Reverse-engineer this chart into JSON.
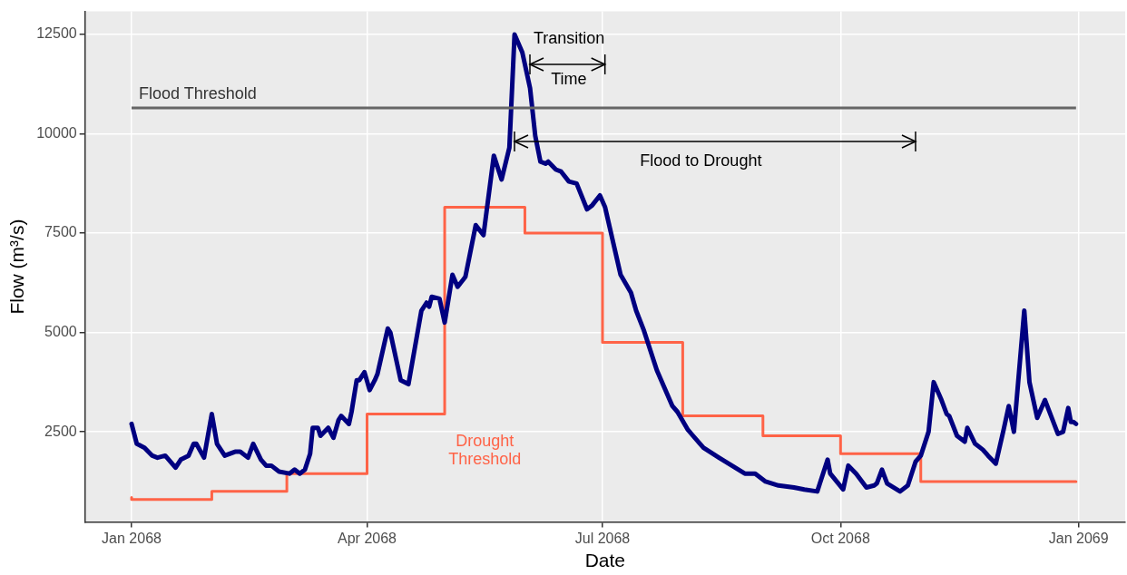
{
  "chart_data": {
    "type": "line",
    "xlabel": "Date",
    "ylabel": "Flow (m³/s)",
    "xlim": [
      "2067-12-14",
      "2069-01-19"
    ],
    "xticks": [
      {
        "value": "2068-01-01",
        "label": "Jan 2068"
      },
      {
        "value": "2068-04-01",
        "label": "Apr 2068"
      },
      {
        "value": "2068-07-01",
        "label": "Jul 2068"
      },
      {
        "value": "2068-10-01",
        "label": "Oct 2068"
      },
      {
        "value": "2069-01-01",
        "label": "Jan 2069"
      }
    ],
    "ylim": [
      230,
      13080
    ],
    "yticks": [
      2500,
      5000,
      7500,
      10000,
      12500
    ],
    "grid": true,
    "legend": false,
    "marker": "none",
    "line_style": "solid",
    "series": [
      {
        "type": "line",
        "color": "#000080",
        "x": [
          "2068-01-01",
          "2068-01-03",
          "2068-01-06",
          "2068-01-09",
          "2068-01-11",
          "2068-01-14",
          "2068-01-18",
          "2068-01-20",
          "2068-01-23",
          "2068-01-25",
          "2068-01-26",
          "2068-01-29",
          "2068-02-01",
          "2068-02-03",
          "2068-02-06",
          "2068-02-10",
          "2068-02-12",
          "2068-02-15",
          "2068-02-17",
          "2068-02-20",
          "2068-02-22",
          "2068-02-24",
          "2068-02-27",
          "2068-03-02",
          "2068-03-04",
          "2068-03-06",
          "2068-03-08",
          "2068-03-10",
          "2068-03-11",
          "2068-03-13",
          "2068-03-14",
          "2068-03-17",
          "2068-03-19",
          "2068-03-21",
          "2068-03-22",
          "2068-03-25",
          "2068-03-26",
          "2068-03-28",
          "2068-03-29",
          "2068-03-31",
          "2068-04-02",
          "2068-04-04",
          "2068-04-05",
          "2068-04-09",
          "2068-04-10",
          "2068-04-14",
          "2068-04-17",
          "2068-04-22",
          "2068-04-24",
          "2068-04-25",
          "2068-04-26",
          "2068-04-29",
          "2068-05-01",
          "2068-05-04",
          "2068-05-06",
          "2068-05-09",
          "2068-05-13",
          "2068-05-16",
          "2068-05-20",
          "2068-05-23",
          "2068-05-26",
          "2068-05-28",
          "2068-05-31",
          "2068-06-03",
          "2068-06-05",
          "2068-06-07",
          "2068-06-09",
          "2068-06-10",
          "2068-06-13",
          "2068-06-15",
          "2068-06-18",
          "2068-06-21",
          "2068-06-25",
          "2068-06-27",
          "2068-06-30",
          "2068-07-02",
          "2068-07-08",
          "2068-07-12",
          "2068-07-14",
          "2068-07-17",
          "2068-07-22",
          "2068-07-28",
          "2068-07-30",
          "2068-08-03",
          "2068-08-09",
          "2068-08-15",
          "2068-08-20",
          "2068-08-25",
          "2068-08-29",
          "2068-09-02",
          "2068-09-07",
          "2068-09-13",
          "2068-09-17",
          "2068-09-22",
          "2068-09-23",
          "2068-09-26",
          "2068-09-27",
          "2068-10-02",
          "2068-10-04",
          "2068-10-07",
          "2068-10-11",
          "2068-10-14",
          "2068-10-15",
          "2068-10-17",
          "2068-10-19",
          "2068-10-24",
          "2068-10-27",
          "2068-10-30",
          "2068-11-01",
          "2068-11-04",
          "2068-11-06",
          "2068-11-09",
          "2068-11-11",
          "2068-11-12",
          "2068-11-15",
          "2068-11-18",
          "2068-11-19",
          "2068-11-22",
          "2068-11-25",
          "2068-11-27",
          "2068-11-30",
          "2068-12-03",
          "2068-12-05",
          "2068-12-07",
          "2068-12-11",
          "2068-12-13",
          "2068-12-16",
          "2068-12-19",
          "2068-12-24",
          "2068-12-26",
          "2068-12-28",
          "2068-12-29",
          "2068-12-30",
          "2068-12-31"
        ],
        "values": [
          2700,
          2200,
          2100,
          1900,
          1850,
          1900,
          1600,
          1800,
          1900,
          2200,
          2200,
          1850,
          2950,
          2200,
          1900,
          2000,
          2000,
          1850,
          2200,
          1800,
          1650,
          1650,
          1500,
          1450,
          1550,
          1450,
          1550,
          1950,
          2600,
          2600,
          2400,
          2600,
          2350,
          2800,
          2900,
          2700,
          3000,
          3800,
          3800,
          4000,
          3550,
          3800,
          3950,
          5100,
          5000,
          3800,
          3700,
          5550,
          5750,
          5650,
          5900,
          5850,
          5250,
          6450,
          6150,
          6400,
          7700,
          7450,
          9450,
          8850,
          9650,
          12500,
          12050,
          11150,
          9950,
          9300,
          9250,
          9300,
          9100,
          9050,
          8800,
          8750,
          8100,
          8200,
          8450,
          8150,
          6450,
          6000,
          5550,
          5050,
          4050,
          3150,
          3000,
          2550,
          2100,
          1850,
          1650,
          1450,
          1450,
          1250,
          1150,
          1100,
          1050,
          1000,
          1200,
          1800,
          1450,
          1050,
          1650,
          1450,
          1100,
          1150,
          1200,
          1550,
          1200,
          1000,
          1150,
          1750,
          1900,
          2500,
          3750,
          3300,
          2950,
          2900,
          2400,
          2250,
          2600,
          2200,
          2050,
          1900,
          1700,
          2550,
          3150,
          2500,
          5550,
          3750,
          2850,
          3300,
          2450,
          2500,
          3100,
          2750,
          2750,
          2700
        ]
      },
      {
        "type": "step",
        "name": "Drought Threshold",
        "color": "#ff6347",
        "x": [
          "2068-01-01",
          "2068-02-01",
          "2068-03-01",
          "2068-04-01",
          "2068-05-01",
          "2068-06-01",
          "2068-07-01",
          "2068-08-01",
          "2068-09-01",
          "2068-10-01",
          "2068-11-01",
          "2068-12-01",
          "2068-12-31"
        ],
        "values": [
          850,
          800,
          1000,
          1450,
          2950,
          8150,
          7500,
          4750,
          2900,
          2400,
          1950,
          1250,
          1250
        ]
      }
    ],
    "ref_lines": [
      {
        "axis": "y",
        "value": 10650,
        "label": "Flood Threshold",
        "color": "#666666"
      }
    ],
    "annotations": [
      {
        "text": "Transition",
        "x": "2068-06-03",
        "y": 11750
      },
      "Time",
      "Flood to Drought"
    ]
  }
}
